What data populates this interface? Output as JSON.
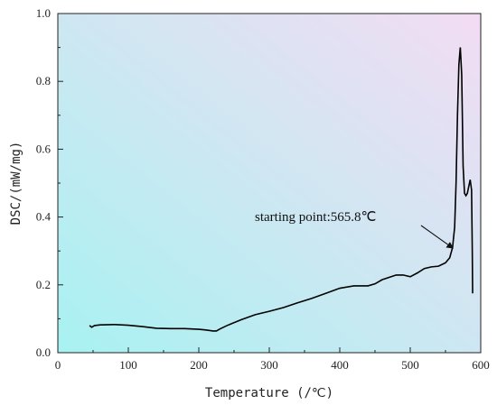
{
  "chart_data": {
    "type": "line",
    "xlabel": "Temperature (/℃)",
    "ylabel": "DSC/(mW/mg)",
    "xlim": [
      0,
      600
    ],
    "ylim": [
      0,
      1.0
    ],
    "x_ticks": [
      "0",
      "100",
      "200",
      "300",
      "400",
      "500",
      "600"
    ],
    "y_ticks": [
      "0.0",
      "0.2",
      "0.4",
      "0.6",
      "0.8",
      "1.0"
    ],
    "grid": false,
    "background_gradient": [
      "#a8f2f2",
      "#f3dcf3"
    ],
    "line_color": "#000000",
    "series": [
      {
        "x": [
          45,
          48,
          52,
          60,
          80,
          100,
          120,
          140,
          160,
          180,
          200,
          210,
          220,
          225,
          230,
          240,
          260,
          280,
          300,
          320,
          340,
          360,
          380,
          400,
          420,
          440,
          450,
          460,
          470,
          480,
          490,
          500,
          510,
          520,
          530,
          540,
          550,
          556,
          560,
          563,
          565,
          567,
          569,
          571,
          573,
          575,
          577,
          579,
          581,
          583,
          585,
          587,
          588,
          588.5
        ],
        "y": [
          0.08,
          0.075,
          0.08,
          0.082,
          0.083,
          0.081,
          0.077,
          0.072,
          0.071,
          0.071,
          0.069,
          0.067,
          0.064,
          0.064,
          0.07,
          0.08,
          0.097,
          0.112,
          0.122,
          0.133,
          0.147,
          0.16,
          0.175,
          0.19,
          0.197,
          0.197,
          0.203,
          0.215,
          0.222,
          0.229,
          0.229,
          0.224,
          0.235,
          0.248,
          0.253,
          0.255,
          0.265,
          0.28,
          0.31,
          0.37,
          0.5,
          0.7,
          0.85,
          0.9,
          0.82,
          0.55,
          0.47,
          0.463,
          0.47,
          0.49,
          0.51,
          0.48,
          0.3,
          0.175
        ]
      }
    ],
    "annotations": [
      {
        "text": "starting point:565.8℃",
        "arrow_to": [
          565.8,
          0.3
        ]
      }
    ]
  }
}
